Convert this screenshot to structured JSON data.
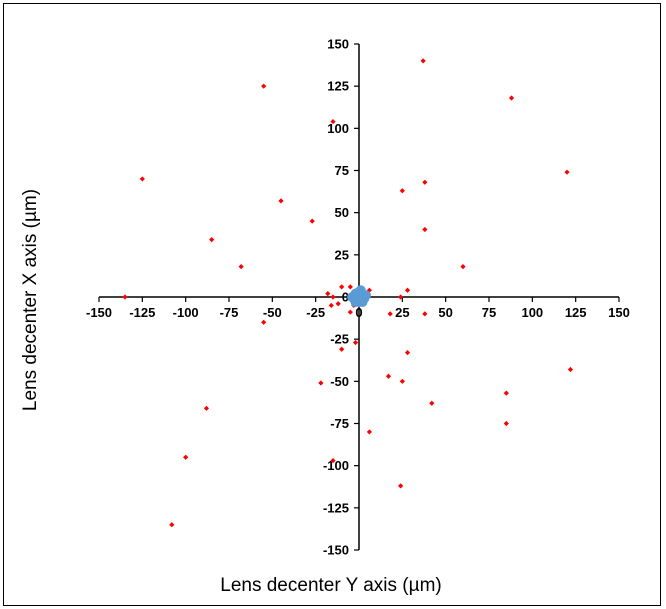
{
  "chart_data": {
    "type": "scatter",
    "xlabel": "Lens decenter Y axis (µm)",
    "ylabel": "Lens decenter X axis (µm)",
    "xlim": [
      -150,
      150
    ],
    "ylim": [
      -150,
      150
    ],
    "x_ticks": [
      -150,
      -125,
      -100,
      -75,
      -50,
      -25,
      0,
      25,
      50,
      75,
      100,
      125,
      150
    ],
    "y_ticks": [
      -150,
      -125,
      -100,
      -75,
      -50,
      -25,
      0,
      25,
      50,
      75,
      100,
      125,
      150
    ],
    "grid": false,
    "series": [
      {
        "color": "#ff0000",
        "marker": "diamond",
        "points": [
          [
            -55,
            125
          ],
          [
            37,
            140
          ],
          [
            88,
            118
          ],
          [
            -15,
            104
          ],
          [
            -125,
            70
          ],
          [
            120,
            74
          ],
          [
            38,
            68
          ],
          [
            25,
            63
          ],
          [
            -45,
            57
          ],
          [
            -27,
            45
          ],
          [
            38,
            40
          ],
          [
            -85,
            34
          ],
          [
            -68,
            18
          ],
          [
            60,
            18
          ],
          [
            -10,
            6
          ],
          [
            -5,
            6
          ],
          [
            -135,
            0
          ],
          [
            -18,
            2
          ],
          [
            24,
            0
          ],
          [
            28,
            4
          ],
          [
            -15,
            0
          ],
          [
            -12,
            -4
          ],
          [
            -16,
            -5
          ],
          [
            -5,
            -9
          ],
          [
            18,
            -10
          ],
          [
            38,
            -10
          ],
          [
            -55,
            -15
          ],
          [
            -2,
            -27
          ],
          [
            -10,
            -31
          ],
          [
            28,
            -33
          ],
          [
            17,
            -47
          ],
          [
            25,
            -50
          ],
          [
            -22,
            -51
          ],
          [
            85,
            -57
          ],
          [
            122,
            -43
          ],
          [
            42,
            -63
          ],
          [
            -88,
            -66
          ],
          [
            85,
            -75
          ],
          [
            6,
            -80
          ],
          [
            -100,
            -95
          ],
          [
            -15,
            -97
          ],
          [
            24,
            -112
          ],
          [
            -108,
            -135
          ],
          [
            -3,
            -5
          ],
          [
            6,
            4
          ]
        ]
      },
      {
        "color": "#5b9bd5",
        "marker": "circle",
        "points": [
          [
            0,
            0
          ],
          [
            2,
            1
          ],
          [
            -2,
            1
          ],
          [
            1,
            -2
          ],
          [
            -1,
            -2
          ],
          [
            3,
            -1
          ],
          [
            -3,
            -1
          ],
          [
            0,
            3
          ],
          [
            0,
            -3
          ],
          [
            2,
            2
          ],
          [
            -2,
            2
          ],
          [
            2,
            -3
          ],
          [
            -2,
            -3
          ],
          [
            4,
            1
          ],
          [
            -4,
            0
          ],
          [
            1,
            4
          ]
        ]
      }
    ]
  }
}
